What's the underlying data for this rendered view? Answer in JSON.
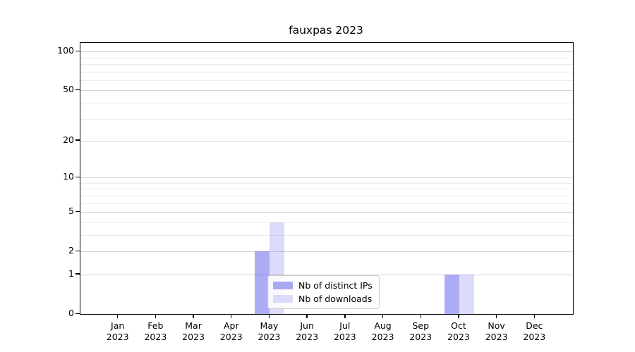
{
  "chart": {
    "title": "fauxpas 2023"
  },
  "legend": {
    "items": [
      {
        "label": "Nb of distinct IPs"
      },
      {
        "label": "Nb of downloads"
      }
    ]
  },
  "chart_data": {
    "type": "bar",
    "title": "fauxpas 2023",
    "categories": [
      "Jan",
      "Feb",
      "Mar",
      "Apr",
      "May",
      "Jun",
      "Jul",
      "Aug",
      "Sep",
      "Oct",
      "Nov",
      "Dec"
    ],
    "category_year": "2023",
    "series": [
      {
        "name": "Nb of distinct IPs",
        "values": [
          0,
          0,
          0,
          0,
          2,
          0,
          0,
          0,
          0,
          1,
          0,
          0
        ],
        "color": "#a9a9f1",
        "fill": "rgba(70,70,230,0.45)"
      },
      {
        "name": "Nb of downloads",
        "values": [
          0,
          0,
          0,
          0,
          4,
          0,
          0,
          0,
          0,
          1,
          0,
          0
        ],
        "color": "#dcdcfa",
        "fill": "rgba(70,70,230,0.19)"
      }
    ],
    "yscale": "log1p",
    "yticks": [
      0,
      1,
      2,
      5,
      10,
      20,
      50,
      100
    ],
    "yticks_minor": [
      3,
      4,
      6,
      7,
      8,
      9,
      30,
      40,
      60,
      70,
      80,
      90
    ],
    "ylim": [
      0,
      116.3
    ],
    "grid": true,
    "legend_position": "lower center-right inside plot",
    "axis_color": "#000000",
    "grid_major_color": "#d4d4d4",
    "grid_minor_color": "#ececec"
  }
}
